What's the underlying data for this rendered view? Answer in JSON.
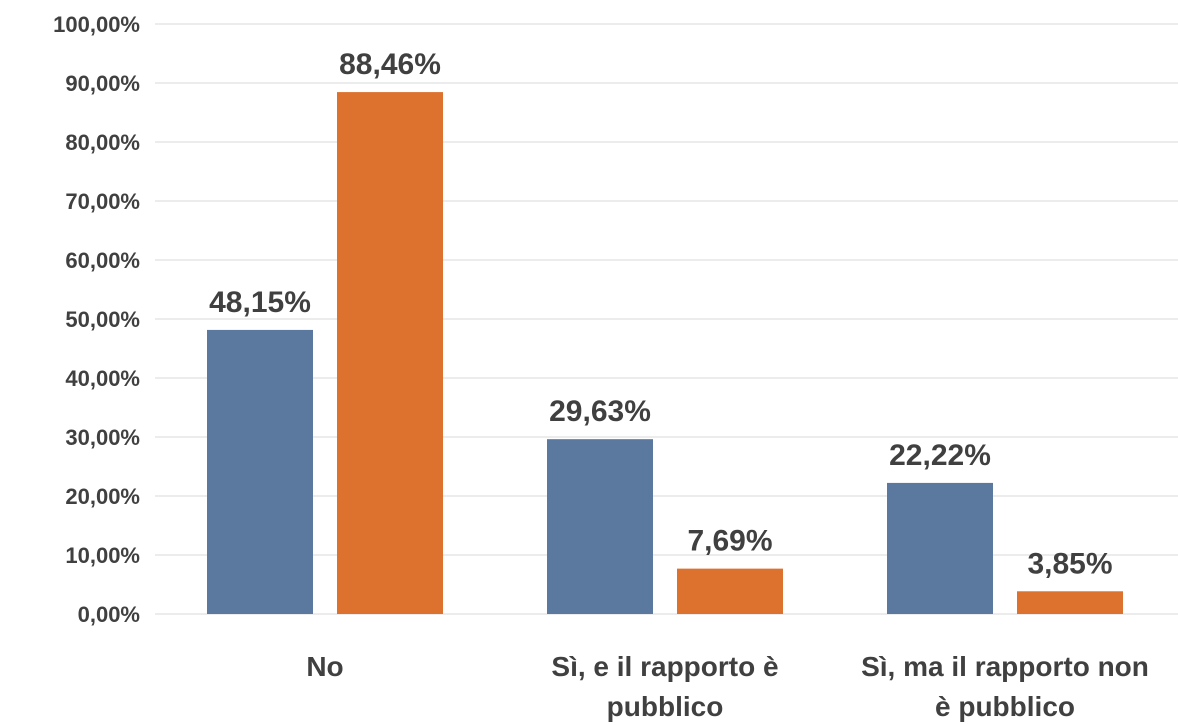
{
  "chart_data": {
    "type": "bar",
    "categories": [
      [
        "No"
      ],
      [
        "Sì, e il rapporto è",
        "pubblico"
      ],
      [
        "Sì, ma il rapporto non",
        "è pubblico"
      ]
    ],
    "series": [
      {
        "values": [
          48.15,
          29.63,
          22.22
        ],
        "labels": [
          "48,15%",
          "29,63%",
          "22,22%"
        ],
        "color": "#5b789f"
      },
      {
        "values": [
          88.46,
          7.69,
          3.85
        ],
        "labels": [
          "88,46%",
          "7,69%",
          "3,85%"
        ],
        "color": "#dc722e"
      }
    ],
    "ylim": [
      0,
      100
    ],
    "y_ticks": [
      0,
      10,
      20,
      30,
      40,
      50,
      60,
      70,
      80,
      90,
      100
    ],
    "y_tick_labels": [
      "0,00%",
      "10,00%",
      "20,00%",
      "30,00%",
      "40,00%",
      "50,00%",
      "60,00%",
      "70,00%",
      "80,00%",
      "90,00%",
      "100,00%"
    ],
    "grid": true,
    "legend": "none",
    "gridline_color": "#d9d9d9",
    "text_color": "#404040"
  }
}
